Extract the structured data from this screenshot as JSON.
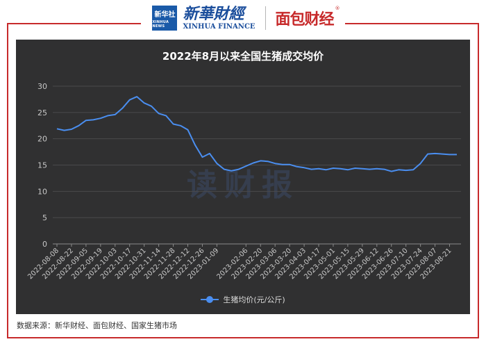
{
  "header": {
    "xinhua_logo_text": "新华社",
    "xinhua_logo_sub": "XINHUA NEWS",
    "brand_cn": "新華財經",
    "brand_en": "XINHUA FINANCE",
    "mianbao_logo": "面包财经",
    "reg_mark": "®"
  },
  "watermark": "读财报",
  "source": "数据来源：新华财经、面包财经、国家生猪市场",
  "colors": {
    "line": "#4a8ef0",
    "panel": "#303031",
    "frame": "#c72a2b"
  },
  "chart_data": {
    "type": "line",
    "title": "2022年8月以来全国生猪成交均价",
    "xlabel": "",
    "ylabel": "",
    "ylim": [
      0,
      30
    ],
    "yticks": [
      0,
      5,
      10,
      15,
      20,
      25,
      30
    ],
    "grid": true,
    "legend_position": "bottom-center",
    "x": [
      "2022-08-08",
      "2022-08-15",
      "2022-08-22",
      "2022-08-29",
      "2022-09-05",
      "2022-09-12",
      "2022-09-19",
      "2022-09-26",
      "2022-10-03",
      "2022-10-10",
      "2022-10-17",
      "2022-10-24",
      "2022-10-31",
      "2022-11-07",
      "2022-11-14",
      "2022-11-21",
      "2022-11-28",
      "2022-12-05",
      "2022-12-12",
      "2022-12-19",
      "2022-12-26",
      "2023-01-02",
      "2023-01-09",
      "2023-01-16",
      "2023-01-23",
      "2023-01-30",
      "2023-02-06",
      "2023-02-13",
      "2023-02-20",
      "2023-02-27",
      "2023-03-06",
      "2023-03-13",
      "2023-03-20",
      "2023-03-27",
      "2023-04-03",
      "2023-04-10",
      "2023-04-17",
      "2023-04-24",
      "2023-05-01",
      "2023-05-08",
      "2023-05-15",
      "2023-05-22",
      "2023-05-29",
      "2023-06-05",
      "2023-06-12",
      "2023-06-19",
      "2023-06-26",
      "2023-07-03",
      "2023-07-10",
      "2023-07-17",
      "2023-07-24",
      "2023-07-31",
      "2023-08-07",
      "2023-08-14",
      "2023-08-21",
      "2023-08-28"
    ],
    "x_tick_labels": [
      "2022-08-08",
      "2022-08-22",
      "2022-09-05",
      "2022-09-19",
      "2022-10-03",
      "2022-10-17",
      "2022-10-31",
      "2022-11-14",
      "2022-11-28",
      "2022-12-12",
      "2022-12-26",
      "2023-01-09",
      "2023-02-06",
      "2023-02-20",
      "2023-03-06",
      "2023-03-20",
      "2023-04-03",
      "2023-04-17",
      "2023-05-01",
      "2023-05-15",
      "2023-05-29",
      "2023-06-12",
      "2023-06-26",
      "2023-07-10",
      "2023-07-24",
      "2023-08-07",
      "2023-08-21"
    ],
    "series": [
      {
        "name": "生猪均价(元/公斤)",
        "values": [
          21.9,
          21.6,
          21.8,
          22.5,
          23.5,
          23.6,
          23.9,
          24.4,
          24.6,
          25.8,
          27.4,
          28.0,
          26.8,
          26.2,
          24.8,
          24.4,
          22.8,
          22.5,
          21.7,
          18.8,
          16.5,
          17.2,
          15.3,
          14.2,
          13.9,
          14.2,
          14.8,
          15.4,
          15.8,
          15.7,
          15.3,
          15.1,
          15.1,
          14.7,
          14.5,
          14.2,
          14.3,
          14.1,
          14.4,
          14.3,
          14.1,
          14.4,
          14.3,
          14.2,
          14.3,
          14.2,
          13.8,
          14.1,
          14.0,
          14.1,
          15.3,
          17.1,
          17.2,
          17.1,
          17.0,
          17.0
        ]
      }
    ]
  }
}
